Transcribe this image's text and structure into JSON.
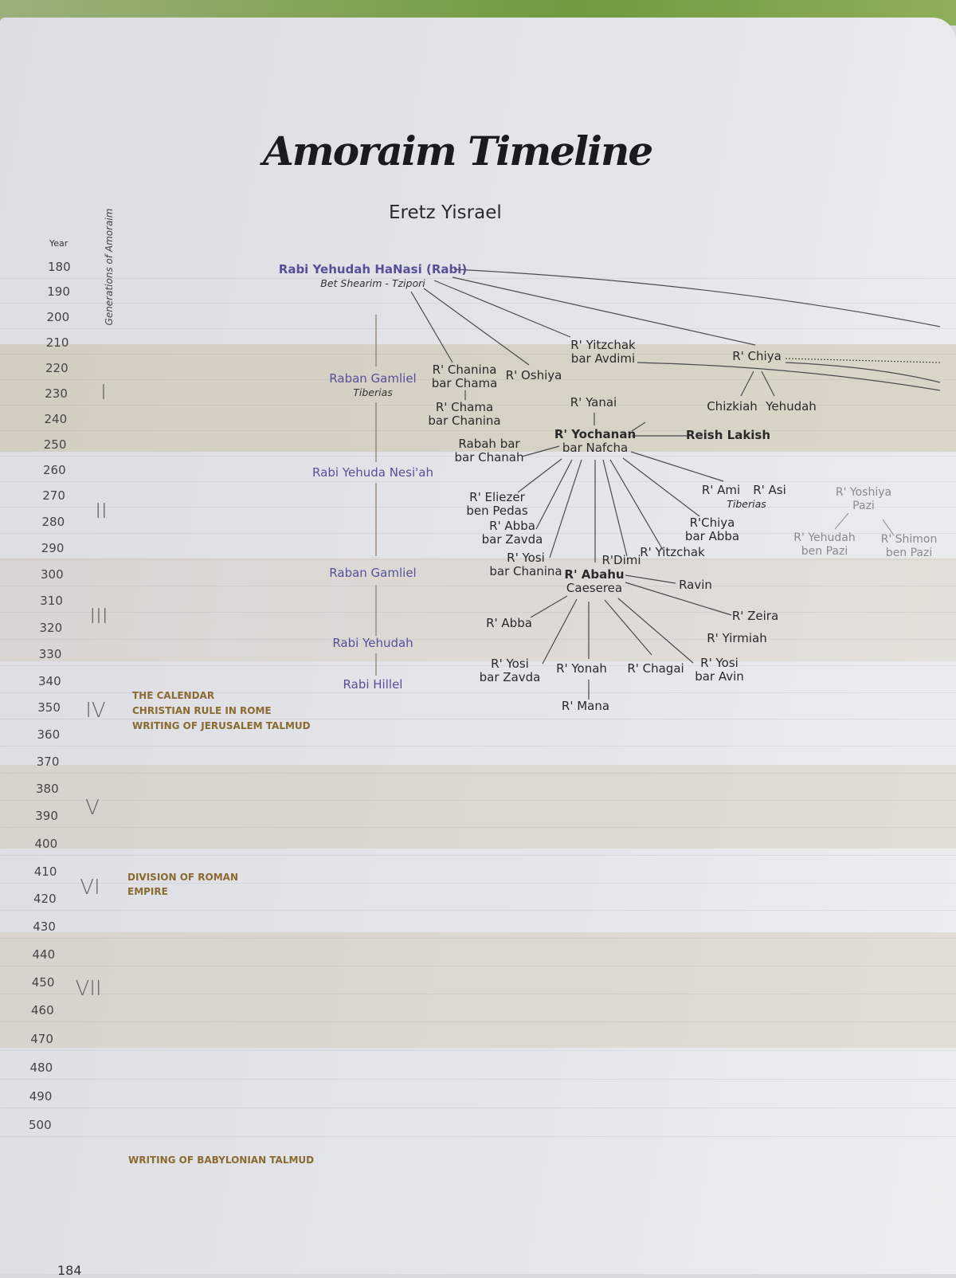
{
  "title": "Amoraim Timeline",
  "subtitle": "Eretz Yisrael",
  "year_axis_label": "Year",
  "generations_axis_label": "Generations of Amoraim",
  "years": [
    "180",
    "190",
    "200",
    "210",
    "220",
    "230",
    "240",
    "250",
    "260",
    "270",
    "280",
    "290",
    "300",
    "310",
    "320",
    "330",
    "340",
    "350",
    "360",
    "370",
    "380",
    "390",
    "400",
    "410",
    "420",
    "430",
    "440",
    "450",
    "460",
    "470",
    "480",
    "490",
    "500"
  ],
  "generations": [
    "I",
    "II",
    "III",
    "IV",
    "V",
    "VI",
    "VII"
  ],
  "events": {
    "gen4": [
      "THE CALENDAR",
      "CHRISTIAN RULE IN ROME",
      "WRITING OF JERUSALEM TALMUD"
    ],
    "gen6": [
      "DIVISION OF ROMAN",
      "EMPIRE"
    ],
    "babylonian": "WRITING OF BABYLONIAN TALMUD"
  },
  "nodes": {
    "rabi": {
      "name": "Rabi Yehudah HaNasi (Rabi)",
      "place": "Bet Shearim - Tzipori"
    },
    "raban_gamliel_1": {
      "name": "Raban Gamliel",
      "place": "Tiberias"
    },
    "rabi_yehuda_nesiah": "Rabi Yehuda Nesi'ah",
    "raban_gamliel_2": "Raban Gamliel",
    "rabi_yehudah": "Rabi Yehudah",
    "rabi_hillel": "Rabi Hillel",
    "chanina_bar_chama": [
      "R' Chanina",
      "bar Chama"
    ],
    "oshiya": "R' Oshiya",
    "yitzchak_bar_avdimi": [
      "R' Yitzchak",
      "bar Avdimi"
    ],
    "chiya": "R' Chiya",
    "chizkiah": "Chizkiah",
    "yehudah": "Yehudah",
    "chama_bar_chanina": [
      "R' Chama",
      "bar Chanina"
    ],
    "yanai": "R' Yanai",
    "yochanan": [
      "R' Yochanan",
      "bar Nafcha"
    ],
    "reish_lakish": "Reish Lakish",
    "rabah_bar_bar_chanah": [
      "Rabah bar",
      "bar Chanah"
    ],
    "eliezer_ben_pedas": [
      "R' Eliezer",
      "ben Pedas"
    ],
    "abba_bar_zavda": [
      "R' Abba",
      "bar Zavda"
    ],
    "yosi_bar_chanina": [
      "R' Yosi",
      "bar Chanina"
    ],
    "dimi": "R'Dimi",
    "yitzchak": "R' Yitzchak",
    "chiya_bar_abba": [
      "R'Chiya",
      "bar Abba"
    ],
    "ami": "R' Ami",
    "asi": "R' Asi",
    "ami_asi_place": "Tiberias",
    "yoshiya": [
      "R' Yoshiya",
      "Pazi"
    ],
    "yehudah_ben_pazi": [
      "R' Yehudah",
      "ben Pazi"
    ],
    "shimon_ben_pazi": [
      "R' Shimon",
      "ben Pazi"
    ],
    "abahu": [
      "R' Abahu",
      "Caeserea"
    ],
    "ravin": "Ravin",
    "zeira": "R' Zeira",
    "yirmiah": "R' Yirmiah",
    "abba": "R' Abba",
    "yosi_bar_zavda": [
      "R' Yosi",
      "bar Zavda"
    ],
    "yonah": "R' Yonah",
    "chagai": "R' Chagai",
    "yosi_bar_avin": [
      "R' Yosi",
      "bar Avin"
    ],
    "mana": "R' Mana"
  },
  "page_number": "184",
  "colors": {
    "accent_purple": "#55509a",
    "event_brown": "#8a6a30",
    "band_tan": "#c4b48e"
  }
}
